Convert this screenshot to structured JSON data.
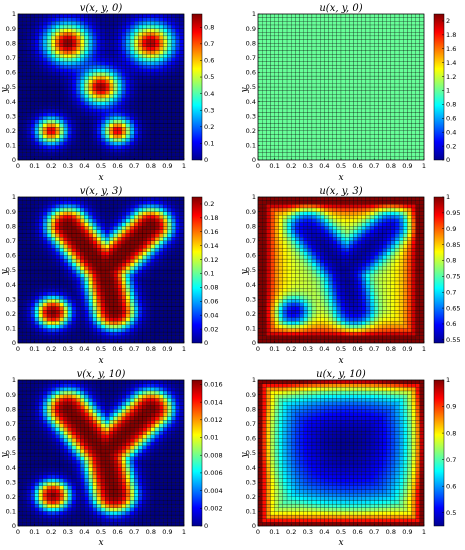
{
  "chart_data": [
    {
      "type": "heatmap",
      "panel": "v0",
      "title": "v(x, y, 0)",
      "xlabel": "x",
      "ylabel": "y",
      "xlim": [
        0,
        1
      ],
      "ylim": [
        0,
        1
      ],
      "x_ticks": [
        "0",
        "0.1",
        "0.2",
        "0.3",
        "0.4",
        "0.5",
        "0.6",
        "0.7",
        "0.8",
        "0.9",
        "1"
      ],
      "y_ticks": [
        "0",
        "0.1",
        "0.2",
        "0.3",
        "0.4",
        "0.5",
        "0.6",
        "0.7",
        "0.8",
        "0.9",
        "1"
      ],
      "clim": [
        0,
        0.88
      ],
      "colorbar_ticks": [
        "0",
        "0.1",
        "0.2",
        "0.3",
        "0.4",
        "0.5",
        "0.6",
        "0.7",
        "0.8"
      ],
      "bumps": [
        {
          "x": 0.3,
          "y": 0.8,
          "sx": 0.09,
          "sy": 0.09,
          "a": 0.88
        },
        {
          "x": 0.8,
          "y": 0.8,
          "sx": 0.09,
          "sy": 0.09,
          "a": 0.85
        },
        {
          "x": 0.5,
          "y": 0.5,
          "sx": 0.08,
          "sy": 0.08,
          "a": 0.85
        },
        {
          "x": 0.6,
          "y": 0.2,
          "sx": 0.06,
          "sy": 0.06,
          "a": 0.8
        },
        {
          "x": 0.2,
          "y": 0.2,
          "sx": 0.06,
          "sy": 0.06,
          "a": 0.8
        }
      ]
    },
    {
      "type": "heatmap",
      "panel": "u0",
      "title": "u(x, y, 0)",
      "xlabel": "x",
      "ylabel": "y",
      "xlim": [
        0,
        1
      ],
      "ylim": [
        0,
        1
      ],
      "x_ticks": [
        "0",
        "0.1",
        "0.2",
        "0.3",
        "0.4",
        "0.5",
        "0.6",
        "0.7",
        "0.8",
        "0.9",
        "1"
      ],
      "y_ticks": [
        "0",
        "0.1",
        "0.2",
        "0.3",
        "0.4",
        "0.5",
        "0.6",
        "0.7",
        "0.8",
        "0.9",
        "1"
      ],
      "clim": [
        0,
        2.1
      ],
      "colorbar_ticks": [
        "0",
        "0.2",
        "0.4",
        "0.6",
        "0.8",
        "1",
        "1.2",
        "1.4",
        "1.6",
        "1.8",
        "2"
      ],
      "constant_value": 1.0
    },
    {
      "type": "heatmap",
      "panel": "v3",
      "title": "v(x, y, 3)",
      "xlabel": "x",
      "ylabel": "y",
      "xlim": [
        0,
        1
      ],
      "ylim": [
        0,
        1
      ],
      "x_ticks": [
        "0",
        "0.1",
        "0.2",
        "0.3",
        "0.4",
        "0.5",
        "0.6",
        "0.7",
        "0.8",
        "0.9",
        "1"
      ],
      "y_ticks": [
        "0",
        "0.1",
        "0.2",
        "0.3",
        "0.4",
        "0.5",
        "0.6",
        "0.7",
        "0.8",
        "0.9",
        "1"
      ],
      "clim": [
        0,
        0.21
      ],
      "colorbar_ticks": [
        "0",
        "0.02",
        "0.04",
        "0.06",
        "0.08",
        "0.1",
        "0.12",
        "0.14",
        "0.16",
        "0.18",
        "0.2"
      ],
      "max_value": 0.22
    },
    {
      "type": "heatmap",
      "panel": "u3",
      "title": "u(x, y, 3)",
      "xlabel": "x",
      "ylabel": "y",
      "xlim": [
        0,
        1
      ],
      "ylim": [
        0,
        1
      ],
      "x_ticks": [
        "0",
        "0.1",
        "0.2",
        "0.3",
        "0.4",
        "0.5",
        "0.6",
        "0.7",
        "0.8",
        "0.9",
        "1"
      ],
      "y_ticks": [
        "0",
        "0.1",
        "0.2",
        "0.3",
        "0.4",
        "0.5",
        "0.6",
        "0.7",
        "0.8",
        "0.9",
        "1"
      ],
      "clim": [
        0.54,
        1.0
      ],
      "colorbar_ticks": [
        "0.55",
        "0.6",
        "0.65",
        "0.7",
        "0.75",
        "0.8",
        "0.85",
        "0.9",
        "0.95",
        "1"
      ],
      "min_value": 0.55,
      "max_value": 1.0
    },
    {
      "type": "heatmap",
      "panel": "v10",
      "title": "v(x, y, 10)",
      "xlabel": "x",
      "ylabel": "y",
      "xlim": [
        0,
        1
      ],
      "ylim": [
        0,
        1
      ],
      "x_ticks": [
        "0",
        "0.1",
        "0.2",
        "0.3",
        "0.4",
        "0.5",
        "0.6",
        "0.7",
        "0.8",
        "0.9",
        "1"
      ],
      "y_ticks": [
        "0",
        "0.1",
        "0.2",
        "0.3",
        "0.4",
        "0.5",
        "0.6",
        "0.7",
        "0.8",
        "0.9",
        "1"
      ],
      "clim": [
        0,
        0.0165
      ],
      "colorbar_ticks": [
        "0",
        "0.002",
        "0.004",
        "0.006",
        "0.008",
        "0.01",
        "0.012",
        "0.014",
        "0.016"
      ],
      "max_value": 0.017
    },
    {
      "type": "heatmap",
      "panel": "u10",
      "title": "u(x, y, 10)",
      "xlabel": "x",
      "ylabel": "y",
      "xlim": [
        0,
        1
      ],
      "ylim": [
        0,
        1
      ],
      "x_ticks": [
        "0",
        "0.1",
        "0.2",
        "0.3",
        "0.4",
        "0.5",
        "0.6",
        "0.7",
        "0.8",
        "0.9",
        "1"
      ],
      "y_ticks": [
        "0",
        "0.1",
        "0.2",
        "0.3",
        "0.4",
        "0.5",
        "0.6",
        "0.7",
        "0.8",
        "0.9",
        "1"
      ],
      "clim": [
        0.45,
        1.0
      ],
      "colorbar_ticks": [
        "0.5",
        "0.6",
        "0.7",
        "0.8",
        "0.9",
        "1"
      ],
      "min_value": 0.46,
      "max_value": 1.0
    }
  ]
}
